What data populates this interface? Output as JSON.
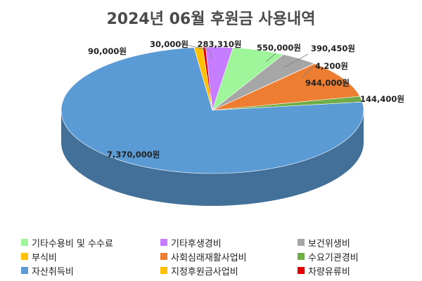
{
  "chart_data": {
    "type": "pie",
    "title": "2024년 06월 후원금 사용내역",
    "unit_suffix": "원",
    "slices": [
      {
        "name": "기타후생경비",
        "value": 283310,
        "label": "283,310원",
        "color": "#c77dff"
      },
      {
        "name": "기타수용비 및 수수료",
        "value": 550000,
        "label": "550,000원",
        "color": "#9ef59a"
      },
      {
        "name": "보건위생비",
        "value": 390450,
        "label": "390,450원",
        "color": "#a6a6a6"
      },
      {
        "name": "부식비",
        "value": 4200,
        "label": "4,200원",
        "color": "#ffc000"
      },
      {
        "name": "사회심래재활사업비",
        "value": 944000,
        "label": "944,000원",
        "color": "#ed7d31"
      },
      {
        "name": "수요기관경비",
        "value": 144400,
        "label": "144,400원",
        "color": "#70ad47"
      },
      {
        "name": "자산취득비",
        "value": 7370000,
        "label": "7,370,000원",
        "color": "#5b9bd5"
      },
      {
        "name": "지정후원금사업비",
        "value": 90000,
        "label": "90,000원",
        "color": "#ffc000"
      },
      {
        "name": "차량유류비",
        "value": 30000,
        "label": "30,000원",
        "color": "#e00000"
      }
    ],
    "legend_position": "bottom"
  },
  "legend": [
    {
      "name": "기타수용비 및 수수료",
      "color": "#9ef59a"
    },
    {
      "name": "기타후생경비",
      "color": "#c77dff"
    },
    {
      "name": "보건위생비",
      "color": "#a6a6a6"
    },
    {
      "name": "부식비",
      "color": "#ffc000"
    },
    {
      "name": "사회심래재활사업비",
      "color": "#ed7d31"
    },
    {
      "name": "수요기관경비",
      "color": "#70ad47"
    },
    {
      "name": "자산취득비",
      "color": "#5b9bd5"
    },
    {
      "name": "지정후원금사업비",
      "color": "#ffc000"
    },
    {
      "name": "차량유류비",
      "color": "#e00000"
    }
  ]
}
